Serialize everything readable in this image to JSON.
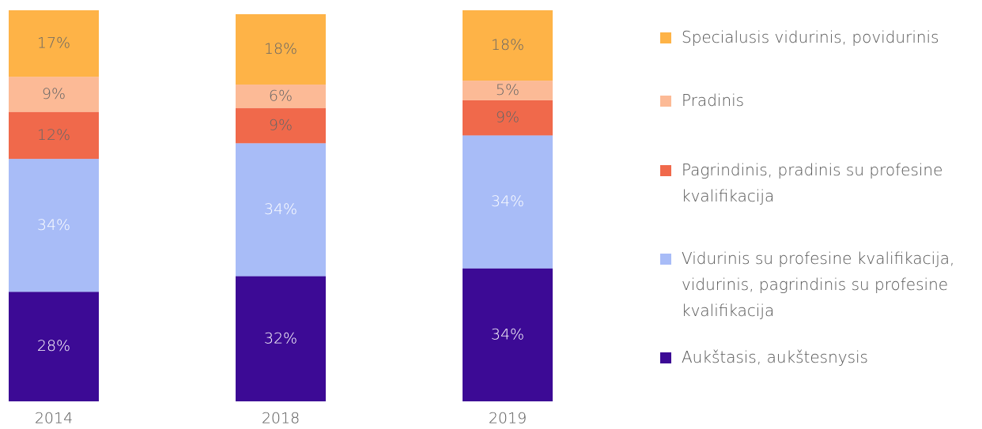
{
  "chart_data": {
    "type": "stacked-bar",
    "categories": [
      "2014",
      "2018",
      "2019"
    ],
    "ylim": [
      0,
      100
    ],
    "series": [
      {
        "name": "Aukštasis, aukštesnysis",
        "color": "#3c0a95",
        "values": [
          28,
          32,
          34
        ],
        "value_labels": [
          "28%",
          "32%",
          "34%"
        ]
      },
      {
        "name": "Vidurinis su profesine kvalifikacija, vidurinis, pagrindinis su profesine kvalifikacija",
        "color": "#a8bcf7",
        "values": [
          34,
          34,
          34
        ],
        "value_labels": [
          "34%",
          "34%",
          "34%"
        ]
      },
      {
        "name": "Pagrindinis, pradinis su profesine kvalifikacija",
        "color": "#f0694b",
        "values": [
          12,
          9,
          9
        ],
        "value_labels": [
          "12%",
          "9%",
          "9%"
        ]
      },
      {
        "name": "Pradinis",
        "color": "#fcba96",
        "values": [
          9,
          6,
          5
        ],
        "value_labels": [
          "9%",
          "6%",
          "5%"
        ]
      },
      {
        "name": "Specialusis vidurinis, povidurinis",
        "color": "#feb347",
        "values": [
          17,
          18,
          18
        ],
        "value_labels": [
          "17%",
          "18%",
          "18%"
        ]
      }
    ],
    "legend": "right"
  }
}
